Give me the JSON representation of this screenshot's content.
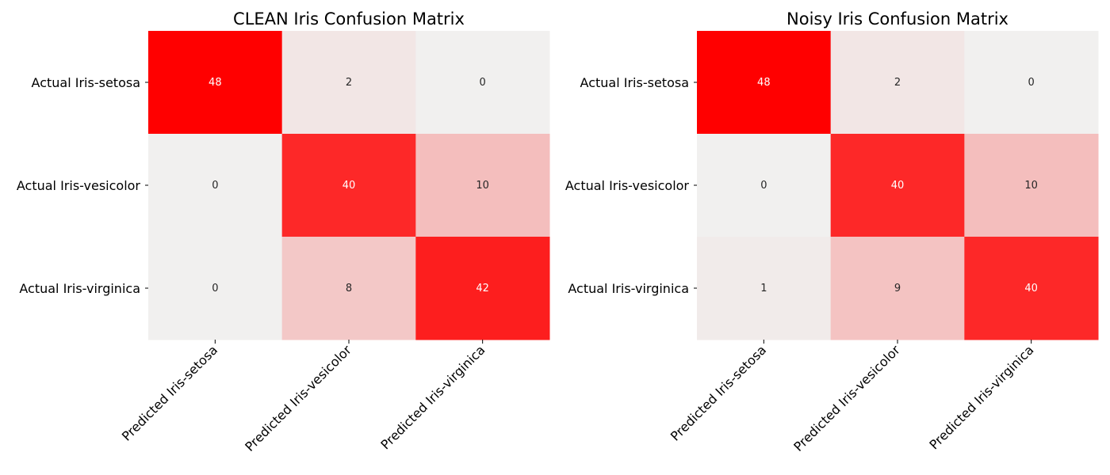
{
  "chart_data": [
    {
      "type": "heatmap",
      "title": "CLEAN Iris Confusion Matrix",
      "rows": [
        "Actual Iris-setosa",
        "Actual Iris-vesicolor",
        "Actual Iris-virginica"
      ],
      "columns": [
        "Predicted Iris-setosa",
        "Predicted Iris-vesicolor",
        "Predicted Iris-virginica"
      ],
      "values": [
        [
          48,
          2,
          0
        ],
        [
          0,
          40,
          10
        ],
        [
          0,
          8,
          42
        ]
      ],
      "colorscale": {
        "low": "#f1f0ef",
        "high": "#ff0000"
      },
      "colorbar": false
    },
    {
      "type": "heatmap",
      "title": "Noisy Iris Confusion Matrix",
      "rows": [
        "Actual Iris-setosa",
        "Actual Iris-vesicolor",
        "Actual Iris-virginica"
      ],
      "columns": [
        "Predicted Iris-setosa",
        "Predicted Iris-vesicolor",
        "Predicted Iris-virginica"
      ],
      "values": [
        [
          48,
          2,
          0
        ],
        [
          0,
          40,
          10
        ],
        [
          1,
          9,
          40
        ]
      ],
      "colorscale": {
        "low": "#f1f0ef",
        "high": "#ff0000"
      },
      "colorbar": false
    }
  ]
}
